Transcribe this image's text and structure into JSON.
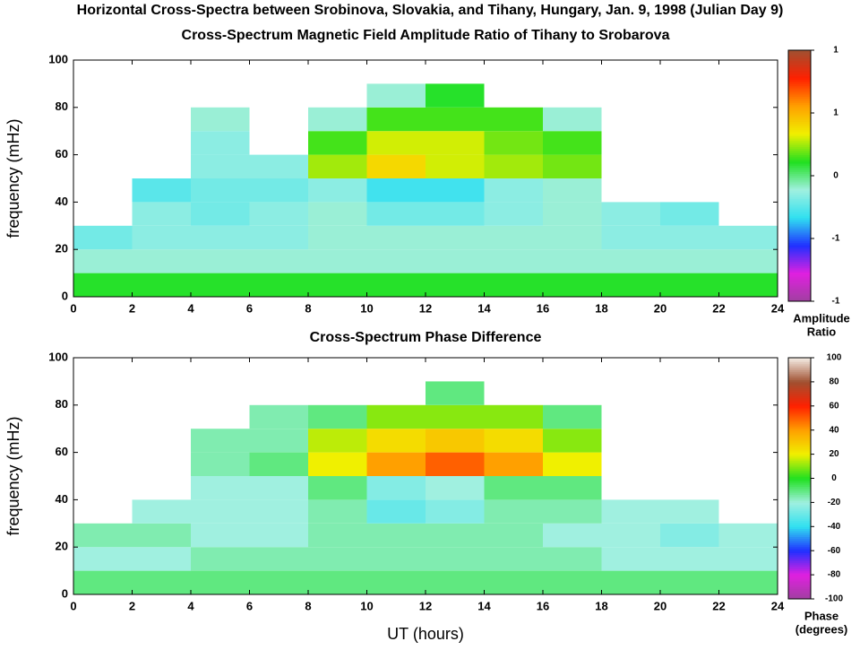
{
  "title": "Horizontal Cross-Spectra between Srobinova, Slovakia, and Tihany, Hungary, Jan. 9, 1998 (Julian Day 9)",
  "chart_data": [
    {
      "type": "heatmap",
      "title": "Cross-Spectrum Magnetic Field Amplitude Ratio of Tihany to Srobarova",
      "y_label": "frequency (mHz)",
      "xlim": [
        0,
        24
      ],
      "xticks": [
        0,
        2,
        4,
        6,
        8,
        10,
        12,
        14,
        16,
        18,
        20,
        22,
        24
      ],
      "ylim": [
        0,
        100
      ],
      "yticks": [
        0,
        20,
        40,
        60,
        80,
        100
      ],
      "x": [
        1,
        3,
        5,
        7,
        9,
        11,
        13,
        15,
        17,
        19,
        21,
        23
      ],
      "y": [
        5,
        15,
        25,
        35,
        45,
        55,
        65,
        75,
        85,
        95
      ],
      "z": [
        [
          0.2,
          -0.2,
          -0.4,
          null,
          null,
          null,
          null,
          null,
          null,
          null
        ],
        [
          0.2,
          -0.2,
          -0.3,
          -0.3,
          -0.5,
          null,
          null,
          null,
          null,
          null
        ],
        [
          0.2,
          -0.2,
          -0.3,
          -0.4,
          -0.4,
          -0.3,
          -0.3,
          -0.2,
          null,
          null
        ],
        [
          0.2,
          -0.2,
          -0.3,
          -0.3,
          -0.4,
          -0.3,
          null,
          null,
          null,
          null
        ],
        [
          0.2,
          -0.2,
          -0.2,
          -0.2,
          -0.3,
          0.5,
          0.3,
          -0.2,
          null,
          null
        ],
        [
          0.2,
          -0.2,
          -0.2,
          -0.4,
          -0.6,
          0.8,
          0.6,
          0.3,
          -0.2,
          null
        ],
        [
          0.2,
          -0.2,
          -0.2,
          -0.4,
          -0.6,
          0.6,
          0.6,
          0.3,
          0.2,
          null
        ],
        [
          0.2,
          -0.2,
          -0.2,
          -0.3,
          -0.3,
          0.5,
          0.4,
          0.3,
          null,
          null
        ],
        [
          0.2,
          -0.2,
          -0.2,
          -0.2,
          -0.2,
          0.4,
          0.3,
          -0.2,
          null,
          null
        ],
        [
          0.2,
          -0.2,
          -0.3,
          -0.3,
          null,
          null,
          null,
          null,
          null,
          null
        ],
        [
          0.2,
          -0.2,
          -0.3,
          -0.4,
          null,
          null,
          null,
          null,
          null,
          null
        ],
        [
          0.2,
          -0.2,
          -0.3,
          null,
          null,
          null,
          null,
          null,
          null,
          null
        ]
      ],
      "zlim": [
        -2,
        2
      ],
      "colormap": [
        "#a040a0",
        "#e020e0",
        "#2030ff",
        "#30e0f0",
        "#a0f0e0",
        "#20e020",
        "#f0f000",
        "#ffa000",
        "#ff2000",
        "#a05030"
      ],
      "colorbar_tick_labels": [
        "1",
        "1",
        "0",
        "-1",
        "-1"
      ],
      "colorbar_label": [
        "Amplitude",
        "Ratio"
      ]
    },
    {
      "type": "heatmap",
      "title": "Cross-Spectrum Phase Difference",
      "y_label": "frequency (mHz)",
      "x_label": "UT (hours)",
      "xlim": [
        0,
        24
      ],
      "xticks": [
        0,
        2,
        4,
        6,
        8,
        10,
        12,
        14,
        16,
        18,
        20,
        22,
        24
      ],
      "ylim": [
        0,
        100
      ],
      "yticks": [
        0,
        20,
        40,
        60,
        80,
        100
      ],
      "x": [
        1,
        3,
        5,
        7,
        9,
        11,
        13,
        15,
        17,
        19,
        21,
        23
      ],
      "y": [
        5,
        15,
        25,
        35,
        45,
        55,
        65,
        75,
        85,
        95
      ],
      "z": [
        [
          -10,
          -20,
          -15,
          null,
          null,
          null,
          null,
          null,
          null,
          null
        ],
        [
          -10,
          -20,
          -15,
          -20,
          null,
          null,
          null,
          null,
          null,
          null
        ],
        [
          -10,
          -15,
          -20,
          -20,
          -20,
          -15,
          -15,
          null,
          null,
          null
        ],
        [
          -10,
          -15,
          -20,
          -20,
          -20,
          -10,
          -15,
          -15,
          null,
          null
        ],
        [
          -10,
          -15,
          -15,
          -15,
          -10,
          20,
          15,
          -10,
          null,
          null
        ],
        [
          -10,
          -15,
          -15,
          -30,
          -25,
          40,
          25,
          10,
          null,
          null
        ],
        [
          -10,
          -15,
          -15,
          -25,
          -20,
          50,
          30,
          10,
          -10,
          null
        ],
        [
          -10,
          -15,
          -15,
          -15,
          -10,
          40,
          25,
          10,
          null,
          null
        ],
        [
          -10,
          -15,
          -20,
          -15,
          -10,
          20,
          10,
          -10,
          null,
          null
        ],
        [
          -10,
          -20,
          -20,
          -20,
          null,
          null,
          null,
          null,
          null,
          null
        ],
        [
          -10,
          -20,
          -25,
          -20,
          null,
          null,
          null,
          null,
          null,
          null
        ],
        [
          -10,
          -20,
          -20,
          null,
          null,
          null,
          null,
          null,
          null,
          null
        ]
      ],
      "zlim": [
        -100,
        100
      ],
      "colormap": [
        "#a040a0",
        "#e020e0",
        "#2030ff",
        "#30e0f0",
        "#a0f0e0",
        "#20e020",
        "#f0f000",
        "#ffa000",
        "#ff2000",
        "#a05030",
        "#f4ece4"
      ],
      "colorbar_ticks": [
        100,
        80,
        60,
        40,
        20,
        0,
        -20,
        -40,
        -60,
        -80,
        -100
      ],
      "colorbar_label": [
        "Phase",
        "(degrees)"
      ]
    }
  ]
}
